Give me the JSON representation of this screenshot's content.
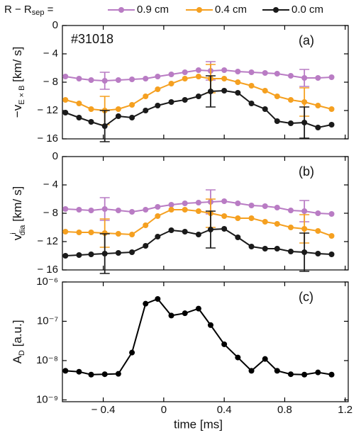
{
  "legend_title": {
    "text": "R − R",
    "sub": "sep",
    "rest": " ="
  },
  "chart_data": [
    {
      "type": "line",
      "annotation": "#31018",
      "panel_label": "(a)",
      "ylabel": {
        "text": "−v",
        "sub": "E × B",
        "rest": " [km/ s]"
      },
      "x": [
        -0.65,
        -0.56,
        -0.48,
        -0.39,
        -0.3,
        -0.21,
        -0.12,
        -0.04,
        0.05,
        0.14,
        0.23,
        0.31,
        0.4,
        0.49,
        0.58,
        0.67,
        0.75,
        0.84,
        0.93,
        1.02,
        1.11
      ],
      "xlim": [
        -0.67,
        1.22
      ],
      "ylim": [
        -16,
        0
      ],
      "yticks": [
        {
          "value": -16,
          "label": "− 16"
        },
        {
          "value": -12,
          "label": "− 12"
        },
        {
          "value": -8,
          "label": "− 8"
        },
        {
          "value": -4,
          "label": "− 4"
        },
        0
      ],
      "series": [
        {
          "name": "0.9 cm",
          "color": "#b97cc4",
          "values": [
            -7.2,
            -7.5,
            -7.7,
            -7.8,
            -7.7,
            -7.6,
            -7.5,
            -7.2,
            -6.9,
            -6.6,
            -6.3,
            -6.4,
            -6.3,
            -6.5,
            -6.6,
            -6.7,
            -6.8,
            -7.1,
            -7.4,
            -7.4,
            -7.3
          ],
          "errors": [
            null,
            null,
            null,
            1.2,
            null,
            null,
            null,
            null,
            null,
            null,
            null,
            1.3,
            null,
            null,
            null,
            null,
            null,
            null,
            1.2,
            null,
            null
          ]
        },
        {
          "name": "0.4 cm",
          "color": "#f5a020",
          "values": [
            -10.5,
            -11,
            -11.8,
            -12,
            -11.8,
            -11.2,
            -10,
            -9,
            -8.2,
            -7.5,
            -7.2,
            -7.5,
            -7.5,
            -8,
            -8.5,
            -9.2,
            -10,
            -10.5,
            -10.8,
            -11.3,
            -11.8
          ],
          "errors": [
            null,
            null,
            null,
            2,
            null,
            null,
            null,
            null,
            null,
            null,
            null,
            2,
            null,
            null,
            null,
            null,
            null,
            null,
            2,
            null,
            null
          ]
        },
        {
          "name": "0.0 cm",
          "color": "#1a1a1a",
          "values": [
            -12.3,
            -13,
            -13.6,
            -14.2,
            -12.8,
            -13,
            -12,
            -11.3,
            -10.8,
            -10.5,
            -10,
            -9.3,
            -9.2,
            -9.5,
            -11,
            -11.8,
            -13.5,
            -13.8,
            -13.7,
            -14.4,
            -14
          ],
          "errors": [
            null,
            null,
            null,
            2.2,
            null,
            null,
            null,
            null,
            null,
            null,
            null,
            2.2,
            null,
            null,
            null,
            null,
            null,
            null,
            2.2,
            null,
            null
          ]
        }
      ]
    },
    {
      "type": "line",
      "panel_label": "(b)",
      "ylabel": {
        "text": "v",
        "sup": "i",
        "sub": "dia",
        "rest": " [km/ s]"
      },
      "x": [
        -0.65,
        -0.56,
        -0.48,
        -0.39,
        -0.3,
        -0.21,
        -0.12,
        -0.04,
        0.05,
        0.14,
        0.23,
        0.31,
        0.4,
        0.49,
        0.58,
        0.67,
        0.75,
        0.84,
        0.93,
        1.02,
        1.11
      ],
      "xlim": [
        -0.67,
        1.22
      ],
      "ylim": [
        -16,
        0
      ],
      "yticks": [
        {
          "value": -16,
          "label": "− 16"
        },
        {
          "value": -12,
          "label": "− 12"
        },
        {
          "value": -8,
          "label": "− 8"
        },
        {
          "value": -4,
          "label": "− 4"
        },
        0
      ],
      "series": [
        {
          "color": "#b97cc4",
          "values": [
            -7.4,
            -7.5,
            -7.6,
            -7.4,
            -7.6,
            -7.8,
            -7.5,
            -7.1,
            -6.8,
            -6.6,
            -6.5,
            -6.4,
            -6.3,
            -6.6,
            -6.9,
            -7,
            -7.2,
            -7.6,
            -7.7,
            -8,
            -8.1
          ],
          "errors": [
            null,
            null,
            null,
            1.6,
            null,
            null,
            null,
            null,
            null,
            null,
            null,
            1.7,
            null,
            null,
            null,
            null,
            null,
            null,
            1.5,
            null,
            null
          ]
        },
        {
          "color": "#f5a020",
          "values": [
            -10.6,
            -10.7,
            -10.7,
            -10.8,
            -10.9,
            -11,
            -9.7,
            -8.4,
            -7.5,
            -7.5,
            -7.7,
            -8,
            -8.4,
            -8.7,
            -8.7,
            -9.2,
            -9.5,
            -10,
            -10.2,
            -10.5,
            -11.2
          ],
          "errors": [
            null,
            null,
            null,
            2,
            null,
            null,
            null,
            null,
            null,
            null,
            null,
            2,
            null,
            null,
            null,
            null,
            null,
            null,
            2,
            null,
            null
          ]
        },
        {
          "color": "#1a1a1a",
          "values": [
            -14,
            -13.9,
            -13.8,
            -13.7,
            -13.6,
            -13.5,
            -12.6,
            -11.3,
            -10.4,
            -10.6,
            -11,
            -10.3,
            -10.2,
            -11.4,
            -12.7,
            -13,
            -13,
            -13.4,
            -13.5,
            -13.7,
            -13.8
          ],
          "errors": [
            null,
            null,
            null,
            2.8,
            null,
            null,
            null,
            null,
            null,
            null,
            null,
            2.6,
            null,
            null,
            null,
            null,
            null,
            null,
            2.7,
            null,
            null
          ]
        }
      ]
    },
    {
      "type": "line",
      "panel_label": "(c)",
      "log_y": true,
      "ylabel": {
        "text": "A",
        "sub": "D",
        "rest": " [a.u.]"
      },
      "xlabel": "time [ms]",
      "x": [
        -0.65,
        -0.56,
        -0.48,
        -0.39,
        -0.3,
        -0.21,
        -0.12,
        -0.04,
        0.05,
        0.14,
        0.23,
        0.31,
        0.4,
        0.49,
        0.58,
        0.67,
        0.75,
        0.84,
        0.93,
        1.02,
        1.11
      ],
      "xlim": [
        -0.67,
        1.22
      ],
      "ylim": [
        9e-10,
        1e-06
      ],
      "xticks": [
        {
          "value": -0.4,
          "label": "− 0.4"
        },
        0,
        0.4,
        0.8,
        1.2
      ],
      "yticks": [
        {
          "value": 1e-09,
          "label": "10⁻⁹"
        },
        {
          "value": 1e-08,
          "label": "10⁻⁸"
        },
        {
          "value": 1e-07,
          "label": "10⁻⁷"
        },
        {
          "value": 1e-06,
          "label": "10⁻⁶"
        }
      ],
      "series": [
        {
          "color": "#000000",
          "values": [
            5.5e-09,
            5.2e-09,
            4.4e-09,
            4.5e-09,
            4.6e-09,
            1.6e-08,
            2.8e-07,
            3.7e-07,
            1.4e-07,
            1.6e-07,
            2.1e-07,
            8e-08,
            2.6e-08,
            1.2e-08,
            5.5e-09,
            1.1e-08,
            5.5e-09,
            4.5e-09,
            4.4e-09,
            5e-09,
            4.4e-09
          ]
        }
      ]
    }
  ]
}
